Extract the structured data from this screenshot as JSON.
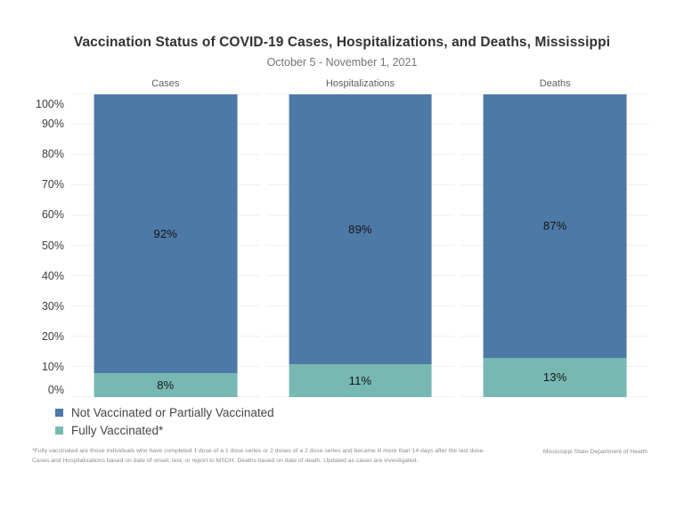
{
  "chart_data": {
    "type": "bar",
    "stacked": true,
    "orientation": "vertical",
    "title": "Vaccination Status of COVID-19 Cases, Hospitalizations, and Deaths, Mississippi",
    "subtitle": "October 5 - November 1, 2021",
    "categories": [
      "Cases",
      "Hospitalizations",
      "Deaths"
    ],
    "series": [
      {
        "name": "Not Vaccinated or Partially Vaccinated",
        "color": "#4d79a7",
        "values": [
          92,
          89,
          87
        ]
      },
      {
        "name": "Fully Vaccinated*",
        "color": "#77b8b2",
        "values": [
          8,
          11,
          13
        ]
      }
    ],
    "value_format": "percent",
    "ylim": [
      0,
      100
    ],
    "yticks": [
      "100%",
      "90%",
      "80%",
      "70%",
      "60%",
      "50%",
      "40%",
      "30%",
      "20%",
      "10%",
      "0%"
    ],
    "grid": true,
    "legend_position": "bottom-left",
    "segment_labels": {
      "Cases": {
        "not_vaccinated": "92%",
        "fully_vaccinated": "8%"
      },
      "Hospitalizations": {
        "not_vaccinated": "89%",
        "fully_vaccinated": "11%"
      },
      "Deaths": {
        "not_vaccinated": "87%",
        "fully_vaccinated": "13%"
      }
    }
  },
  "footnote": {
    "line1": "*Fully vaccinated are those individuals who have completed 1 dose of a 1 dose series or 2 doses of a 2 dose series and became ill more than 14 days after the last dose.",
    "line2": "Cases and Hospitalizations based on date of onset, test, or report to MSDH. Deaths based on date of death. Updated as cases are investigated."
  },
  "source": "Mississippi State Department of Health",
  "colors": {
    "not_vaccinated": "#4d79a7",
    "fully_vaccinated": "#77b8b2",
    "gridline": "#f0f0f0",
    "title_text": "#323232",
    "subtitle_text": "#757575"
  }
}
